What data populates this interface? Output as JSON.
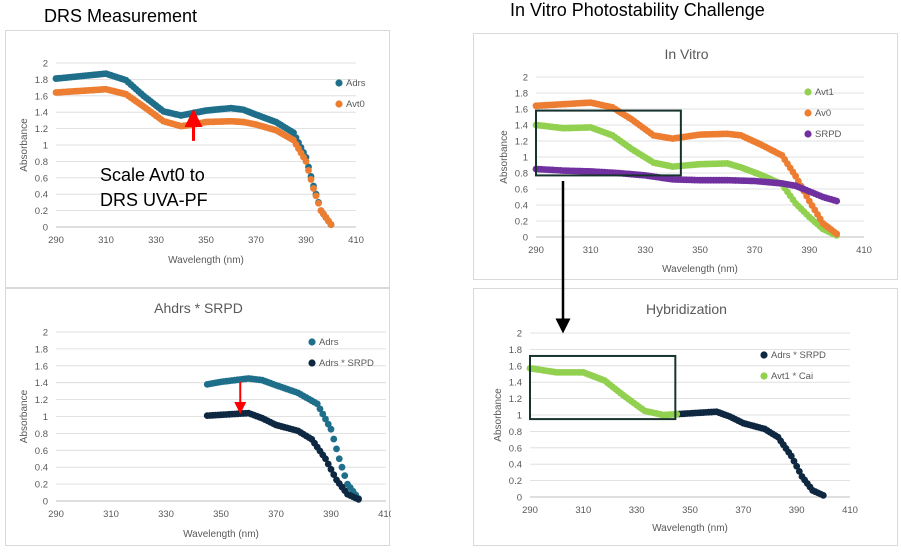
{
  "sections": {
    "drs_title": "DRS Measurement",
    "invitro_title": "In Vitro Photostability Challenge"
  },
  "annotations": {
    "scale_line1": "Scale Avt0 to",
    "scale_line2": "DRS UVA-PF"
  },
  "colors": {
    "adrs": "#1f6f8b",
    "avt0": "#ed7d31",
    "avt1": "#92d050",
    "srpd": "#7030a0",
    "adrs_srpd": "#0e2841",
    "box": "#17332e",
    "red_arrow": "#ff0000",
    "axis_text": "#595959",
    "grid": "#d9d9d9"
  },
  "chart_data": [
    {
      "id": "drs",
      "type": "scatter",
      "title": "",
      "xlabel": "Wavelength (nm)",
      "ylabel": "Absorbance",
      "xlim": [
        290,
        410
      ],
      "ylim": [
        0,
        2
      ],
      "xticks": [
        "290",
        "310",
        "330",
        "350",
        "370",
        "390",
        "410"
      ],
      "yticks": [
        "0",
        "0.2",
        "0.4",
        "0.6",
        "0.8",
        "1",
        "1.2",
        "1.4",
        "1.6",
        "1.8",
        "2"
      ],
      "legend": [
        "Adrs",
        "Avt0"
      ],
      "series": [
        {
          "name": "Adrs",
          "x_range": [
            290,
            400
          ],
          "keypoints": [
            [
              290,
              1.81
            ],
            [
              300,
              1.84
            ],
            [
              310,
              1.87
            ],
            [
              318,
              1.79
            ],
            [
              325,
              1.6
            ],
            [
              333,
              1.41
            ],
            [
              340,
              1.36
            ],
            [
              345,
              1.39
            ],
            [
              350,
              1.42
            ],
            [
              360,
              1.45
            ],
            [
              365,
              1.43
            ],
            [
              370,
              1.37
            ],
            [
              378,
              1.28
            ],
            [
              385,
              1.15
            ],
            [
              390,
              0.85
            ],
            [
              393,
              0.5
            ],
            [
              396,
              0.2
            ],
            [
              400,
              0.03
            ]
          ]
        },
        {
          "name": "Avt0",
          "x_range": [
            290,
            400
          ],
          "keypoints": [
            [
              290,
              1.64
            ],
            [
              300,
              1.66
            ],
            [
              310,
              1.68
            ],
            [
              318,
              1.62
            ],
            [
              325,
              1.47
            ],
            [
              333,
              1.29
            ],
            [
              340,
              1.23
            ],
            [
              345,
              1.25
            ],
            [
              350,
              1.28
            ],
            [
              360,
              1.29
            ],
            [
              365,
              1.28
            ],
            [
              370,
              1.25
            ],
            [
              378,
              1.18
            ],
            [
              385,
              1.06
            ],
            [
              390,
              0.8
            ],
            [
              393,
              0.47
            ],
            [
              396,
              0.2
            ],
            [
              400,
              0.03
            ]
          ]
        }
      ]
    },
    {
      "id": "ahdrs",
      "type": "scatter",
      "title": "Ahdrs * SRPD",
      "xlabel": "Wavelength (nm)",
      "ylabel": "Absorbance",
      "xlim": [
        290,
        410
      ],
      "ylim": [
        0,
        2
      ],
      "xticks": [
        "290",
        "310",
        "330",
        "350",
        "370",
        "390",
        "410"
      ],
      "yticks": [
        "0",
        "0.2",
        "0.4",
        "0.6",
        "0.8",
        "1",
        "1.2",
        "1.4",
        "1.6",
        "1.8",
        "2"
      ],
      "legend": [
        "Adrs",
        "Adrs * SRPD"
      ],
      "series": [
        {
          "name": "Adrs",
          "x_range": [
            345,
            400
          ],
          "keypoints": [
            [
              345,
              1.38
            ],
            [
              350,
              1.41
            ],
            [
              360,
              1.45
            ],
            [
              365,
              1.43
            ],
            [
              370,
              1.37
            ],
            [
              378,
              1.28
            ],
            [
              385,
              1.15
            ],
            [
              390,
              0.85
            ],
            [
              393,
              0.5
            ],
            [
              396,
              0.2
            ],
            [
              400,
              0.03
            ]
          ]
        },
        {
          "name": "Adrs * SRPD",
          "x_range": [
            345,
            400
          ],
          "keypoints": [
            [
              345,
              1.01
            ],
            [
              350,
              1.02
            ],
            [
              360,
              1.04
            ],
            [
              365,
              0.98
            ],
            [
              370,
              0.9
            ],
            [
              378,
              0.83
            ],
            [
              383,
              0.73
            ],
            [
              388,
              0.5
            ],
            [
              392,
              0.25
            ],
            [
              396,
              0.08
            ],
            [
              400,
              0.02
            ]
          ]
        }
      ]
    },
    {
      "id": "invitro",
      "type": "scatter",
      "title": "In Vitro",
      "xlabel": "Wavelength (nm)",
      "ylabel": "Absorbance",
      "xlim": [
        290,
        410
      ],
      "ylim": [
        0,
        2
      ],
      "xticks": [
        "290",
        "310",
        "330",
        "350",
        "370",
        "390",
        "410"
      ],
      "yticks": [
        "0",
        "0.2",
        "0.4",
        "0.6",
        "0.8",
        "1",
        "1.2",
        "1.4",
        "1.6",
        "1.8",
        "2"
      ],
      "legend": [
        "Avt1",
        "Av0",
        "SRPD"
      ],
      "series": [
        {
          "name": "Avt1",
          "x_range": [
            290,
            400
          ],
          "keypoints": [
            [
              290,
              1.4
            ],
            [
              300,
              1.36
            ],
            [
              310,
              1.37
            ],
            [
              318,
              1.27
            ],
            [
              325,
              1.1
            ],
            [
              333,
              0.93
            ],
            [
              340,
              0.88
            ],
            [
              350,
              0.91
            ],
            [
              360,
              0.92
            ],
            [
              365,
              0.87
            ],
            [
              372,
              0.78
            ],
            [
              380,
              0.66
            ],
            [
              385,
              0.42
            ],
            [
              390,
              0.25
            ],
            [
              395,
              0.1
            ],
            [
              400,
              0.02
            ]
          ]
        },
        {
          "name": "Av0",
          "x_range": [
            290,
            400
          ],
          "keypoints": [
            [
              290,
              1.64
            ],
            [
              300,
              1.66
            ],
            [
              310,
              1.68
            ],
            [
              318,
              1.62
            ],
            [
              325,
              1.47
            ],
            [
              333,
              1.27
            ],
            [
              340,
              1.23
            ],
            [
              350,
              1.28
            ],
            [
              360,
              1.29
            ],
            [
              365,
              1.27
            ],
            [
              372,
              1.16
            ],
            [
              380,
              1.02
            ],
            [
              385,
              0.76
            ],
            [
              390,
              0.45
            ],
            [
              395,
              0.17
            ],
            [
              400,
              0.04
            ]
          ]
        },
        {
          "name": "SRPD",
          "x_range": [
            290,
            400
          ],
          "keypoints": [
            [
              290,
              0.85
            ],
            [
              300,
              0.83
            ],
            [
              310,
              0.82
            ],
            [
              320,
              0.8
            ],
            [
              330,
              0.77
            ],
            [
              340,
              0.72
            ],
            [
              350,
              0.71
            ],
            [
              360,
              0.71
            ],
            [
              370,
              0.7
            ],
            [
              380,
              0.67
            ],
            [
              385,
              0.64
            ],
            [
              390,
              0.57
            ],
            [
              395,
              0.5
            ],
            [
              400,
              0.45
            ]
          ]
        }
      ]
    },
    {
      "id": "hybrid",
      "type": "scatter",
      "title": "Hybridization",
      "xlabel": "Wavelength (nm)",
      "ylabel": "Absorbance",
      "xlim": [
        290,
        410
      ],
      "ylim": [
        0,
        2
      ],
      "xticks": [
        "290",
        "310",
        "330",
        "350",
        "370",
        "390",
        "410"
      ],
      "yticks": [
        "0",
        "0.2",
        "0.4",
        "0.6",
        "0.8",
        "1",
        "1.2",
        "1.4",
        "1.6",
        "1.8",
        "2"
      ],
      "legend": [
        "Adrs * SRPD",
        "Avt1 * Cai"
      ],
      "series": [
        {
          "name": "Adrs * SRPD",
          "x_range": [
            345,
            400
          ],
          "keypoints": [
            [
              345,
              1.01
            ],
            [
              350,
              1.02
            ],
            [
              360,
              1.04
            ],
            [
              365,
              0.98
            ],
            [
              370,
              0.9
            ],
            [
              378,
              0.83
            ],
            [
              383,
              0.73
            ],
            [
              388,
              0.5
            ],
            [
              392,
              0.25
            ],
            [
              396,
              0.08
            ],
            [
              400,
              0.02
            ]
          ]
        },
        {
          "name": "Avt1 * Cai",
          "x_range": [
            290,
            345
          ],
          "keypoints": [
            [
              290,
              1.57
            ],
            [
              300,
              1.52
            ],
            [
              310,
              1.52
            ],
            [
              318,
              1.42
            ],
            [
              325,
              1.24
            ],
            [
              333,
              1.05
            ],
            [
              340,
              1.0
            ],
            [
              345,
              1.01
            ]
          ]
        }
      ]
    }
  ]
}
